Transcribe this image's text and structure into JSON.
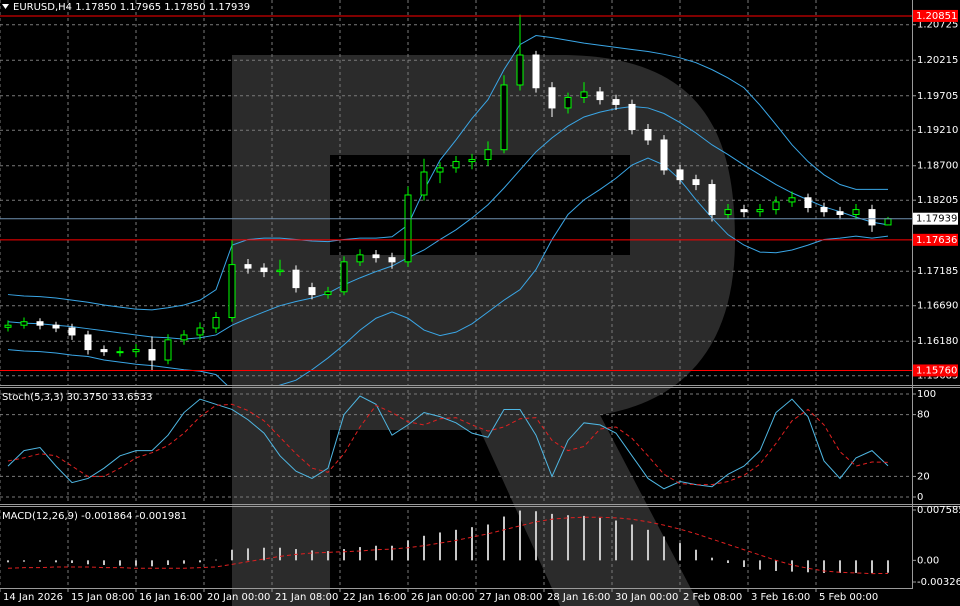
{
  "chart_data": [
    {
      "type": "candlestick",
      "title": "EURUSD,H4  1.17850 1.17965 1.17850 1.17939",
      "up_color": "#00ff00",
      "down_color": "#ffffff",
      "candles": {
        "open": [
          1.1638,
          1.1641,
          1.1646,
          1.1641,
          1.1637,
          1.1627,
          1.1606,
          1.1603,
          1.1603,
          1.1606,
          1.1591,
          1.162,
          1.1627,
          1.1637,
          1.1652,
          1.1728,
          1.1723,
          1.1718,
          1.172,
          1.1695,
          1.1685,
          1.1689,
          1.1732,
          1.1742,
          1.1738,
          1.1732,
          1.1828,
          1.1861,
          1.1867,
          1.1876,
          1.1879,
          1.1893,
          1.1986,
          1.2029,
          1.1982,
          1.1953,
          1.1968,
          1.1976,
          1.1965,
          1.1958,
          1.1922,
          1.1907,
          1.1864,
          1.185,
          1.1843,
          1.18,
          1.1807,
          1.1804,
          1.1807,
          1.1818,
          1.1824,
          1.181,
          1.1804,
          1.18,
          1.1807,
          1.1785
        ],
        "high": [
          1.1648,
          1.1652,
          1.1651,
          1.1646,
          1.1643,
          1.1633,
          1.1612,
          1.161,
          1.1614,
          1.1625,
          1.1628,
          1.1634,
          1.1645,
          1.166,
          1.1764,
          1.1736,
          1.173,
          1.1735,
          1.1727,
          1.1702,
          1.1696,
          1.174,
          1.175,
          1.1749,
          1.1745,
          1.184,
          1.188,
          1.1875,
          1.1884,
          1.1887,
          1.1905,
          1.2,
          1.2087,
          1.2035,
          1.199,
          1.1975,
          1.199,
          1.1983,
          1.1972,
          1.1965,
          1.193,
          1.1914,
          1.1871,
          1.1857,
          1.185,
          1.1815,
          1.1814,
          1.1815,
          1.1826,
          1.1833,
          1.183,
          1.1817,
          1.1811,
          1.1815,
          1.1814,
          1.17965
        ],
        "low": [
          1.1632,
          1.1636,
          1.1635,
          1.1631,
          1.162,
          1.1599,
          1.1597,
          1.1596,
          1.1595,
          1.1575,
          1.1585,
          1.1613,
          1.162,
          1.163,
          1.1646,
          1.1715,
          1.171,
          1.1712,
          1.1688,
          1.1678,
          1.1679,
          1.1684,
          1.1726,
          1.1731,
          1.1722,
          1.1725,
          1.182,
          1.1845,
          1.186,
          1.1865,
          1.187,
          1.1888,
          1.1978,
          1.1975,
          1.194,
          1.1945,
          1.196,
          1.1958,
          1.195,
          1.1915,
          1.19,
          1.1857,
          1.1843,
          1.1835,
          1.179,
          1.1793,
          1.1796,
          1.1797,
          1.18,
          1.1811,
          1.1803,
          1.1797,
          1.1793,
          1.1793,
          1.1775,
          1.1785
        ],
        "close": [
          1.1641,
          1.1646,
          1.1641,
          1.1637,
          1.1627,
          1.1606,
          1.1603,
          1.1603,
          1.1606,
          1.1591,
          1.162,
          1.1627,
          1.1637,
          1.1652,
          1.1728,
          1.1723,
          1.1718,
          1.172,
          1.1695,
          1.1685,
          1.1689,
          1.1732,
          1.1742,
          1.1738,
          1.1732,
          1.1828,
          1.1861,
          1.1867,
          1.1876,
          1.1879,
          1.1893,
          1.1986,
          1.2029,
          1.1982,
          1.1953,
          1.1968,
          1.1976,
          1.1965,
          1.1958,
          1.1922,
          1.1907,
          1.1864,
          1.185,
          1.1843,
          1.18,
          1.1807,
          1.1804,
          1.1807,
          1.1818,
          1.1824,
          1.181,
          1.1804,
          1.18,
          1.1807,
          1.1785,
          1.17939
        ]
      },
      "series": [
        {
          "color": "#3aa6e6",
          "values": [
            1.1646,
            1.1644,
            1.1643,
            1.1641,
            1.1639,
            1.1636,
            1.1633,
            1.163,
            1.1627,
            1.1624,
            1.1623,
            1.1621,
            1.1623,
            1.1627,
            1.1641,
            1.1651,
            1.166,
            1.1669,
            1.1675,
            1.168,
            1.1687,
            1.1699,
            1.1709,
            1.1718,
            1.1726,
            1.1738,
            1.1749,
            1.1764,
            1.1778,
            1.1795,
            1.1814,
            1.1838,
            1.1864,
            1.189,
            1.191,
            1.1927,
            1.194,
            1.1947,
            1.1952,
            1.1955,
            1.1953,
            1.1945,
            1.1932,
            1.1917,
            1.19,
            1.1886,
            1.1871,
            1.1857,
            1.1843,
            1.1831,
            1.1821,
            1.1811,
            1.1804,
            1.1796,
            1.1789,
            1.1785
          ]
        },
        {
          "color": "#3aa6e6",
          "values": [
            1.1685,
            1.1683,
            1.1682,
            1.168,
            1.1677,
            1.1674,
            1.167,
            1.1667,
            1.1664,
            1.1663,
            1.1666,
            1.167,
            1.1677,
            1.1692,
            1.1756,
            1.1764,
            1.1766,
            1.1766,
            1.1764,
            1.1762,
            1.1761,
            1.1764,
            1.1766,
            1.1766,
            1.1768,
            1.1785,
            1.1835,
            1.1878,
            1.1907,
            1.1938,
            1.1965,
            1.2008,
            1.2044,
            1.2057,
            1.2054,
            1.205,
            1.2046,
            1.2043,
            1.204,
            1.2037,
            1.2034,
            1.203,
            1.2025,
            1.2018,
            1.2008,
            1.1996,
            1.1982,
            1.1957,
            1.1929,
            1.19,
            1.1876,
            1.1857,
            1.1843,
            1.1836,
            1.1836,
            1.1836
          ]
        },
        {
          "color": "#3aa6e6",
          "values": [
            1.1606,
            1.1604,
            1.1603,
            1.1601,
            1.1598,
            1.1596,
            1.1591,
            1.1588,
            1.1585,
            1.1583,
            1.158,
            1.1577,
            1.1575,
            1.157,
            1.1548,
            1.1545,
            1.1548,
            1.1555,
            1.1562,
            1.1577,
            1.1594,
            1.1613,
            1.1634,
            1.1651,
            1.166,
            1.1651,
            1.1634,
            1.1626,
            1.1631,
            1.1643,
            1.166,
            1.1677,
            1.1692,
            1.1721,
            1.1764,
            1.18,
            1.1821,
            1.1836,
            1.1852,
            1.1871,
            1.1881,
            1.1871,
            1.185,
            1.1821,
            1.1795,
            1.1771,
            1.1756,
            1.1746,
            1.1745,
            1.1749,
            1.1756,
            1.1764,
            1.1766,
            1.1769,
            1.1766,
            1.1769
          ]
        }
      ],
      "ylim": [
        1.1558,
        1.2108
      ],
      "yticks": [
        1.20725,
        1.20215,
        1.19705,
        {
          "value": 1.1921,
          "label": "1.19210"
        },
        {
          "value": 1.187,
          "label": "1.18700"
        },
        1.18205,
        1.17185,
        {
          "value": 1.1669,
          "label": "1.16690"
        },
        {
          "value": 1.1618,
          "label": "1.16180"
        },
        1.15685
      ],
      "grid": true,
      "levels": [
        1.20851,
        1.17636,
        {
          "value": 1.1576,
          "label": "1.15760"
        }
      ],
      "level_color": "#ff0000",
      "current_price": 1.17939,
      "current_color": "#6f8fb0",
      "xticks": [
        {
          "value": -0.5,
          "label": "14 Jan 2026"
        },
        {
          "value": 3.75,
          "label": "15 Jan 08:00"
        },
        {
          "value": 8,
          "label": "16 Jan 16:00"
        },
        {
          "value": 12.25,
          "label": "20 Jan 00:00"
        },
        {
          "value": 16.5,
          "label": "21 Jan 08:00"
        },
        {
          "value": 20.75,
          "label": "22 Jan 16:00"
        },
        {
          "value": 25,
          "label": "26 Jan 00:00"
        },
        {
          "value": 29.25,
          "label": "27 Jan 08:00"
        },
        {
          "value": 33.5,
          "label": "28 Jan 16:00"
        },
        {
          "value": 37.75,
          "label": "30 Jan 00:00"
        },
        {
          "value": 42,
          "label": "2 Feb 08:00"
        },
        {
          "value": 46.25,
          "label": "3 Feb 16:00"
        },
        {
          "value": 50.5,
          "label": "5 Feb 00:00"
        }
      ]
    },
    {
      "type": "line",
      "title": "Stoch(5,3,3) 30.3750 33.6533",
      "series": [
        {
          "color": "#4fb7e3",
          "dashed": false,
          "values": [
            30,
            45,
            48,
            30,
            14,
            18,
            28,
            40,
            45,
            45,
            60,
            82,
            95,
            90,
            85,
            75,
            62,
            40,
            25,
            18,
            28,
            80,
            98,
            90,
            60,
            70,
            82,
            78,
            72,
            62,
            58,
            85,
            85,
            60,
            20,
            55,
            72,
            70,
            62,
            40,
            18,
            8,
            15,
            12,
            10,
            22,
            30,
            45,
            82,
            95,
            78,
            35,
            18,
            38,
            45,
            30.375
          ]
        },
        {
          "color": "#e02020",
          "dashed": true,
          "values": [
            35,
            38,
            42,
            40,
            30,
            20,
            20,
            28,
            38,
            43,
            50,
            62,
            78,
            89,
            90,
            84,
            74,
            58,
            42,
            28,
            24,
            42,
            68,
            89,
            82,
            73,
            70,
            76,
            77,
            70,
            64,
            68,
            76,
            77,
            55,
            45,
            49,
            66,
            68,
            57,
            40,
            22,
            13,
            12,
            12,
            15,
            21,
            32,
            52,
            74,
            85,
            70,
            44,
            30,
            34,
            33.6533
          ]
        }
      ],
      "ylim": [
        0,
        100
      ],
      "yticks": [
        100,
        80,
        20,
        0
      ],
      "grid": true
    },
    {
      "type": "macd",
      "title": "MACD(12,26,9) -0.001864 -0.001981",
      "histogram": {
        "color": "#c8c8c8",
        "values": [
          -0.0003,
          -0.0002,
          -0.0002,
          -0.0003,
          -0.0004,
          -0.0006,
          -0.0007,
          -0.0008,
          -0.0008,
          -0.0009,
          -0.0007,
          -0.0005,
          -0.0003,
          0.0001,
          0.0016,
          0.0018,
          0.0019,
          0.0019,
          0.0017,
          0.0015,
          0.0014,
          0.0017,
          0.002,
          0.0022,
          0.0022,
          0.003,
          0.0037,
          0.0042,
          0.0046,
          0.005,
          0.0054,
          0.0066,
          0.0075,
          0.0074,
          0.007,
          0.0068,
          0.0067,
          0.0064,
          0.006,
          0.0054,
          0.0046,
          0.0036,
          0.0026,
          0.0016,
          0.0004,
          -0.0004,
          -0.001,
          -0.0014,
          -0.0016,
          -0.0017,
          -0.0018,
          -0.0019,
          -0.0019,
          -0.0019,
          -0.0019,
          -0.001864
        ]
      },
      "series": [
        {
          "color": "#e02020",
          "dashed": true,
          "values": [
            -0.0012,
            -0.0011,
            -0.0011,
            -0.001,
            -0.001,
            -0.001,
            -0.0011,
            -0.0011,
            -0.0012,
            -0.0012,
            -0.0012,
            -0.0012,
            -0.0011,
            -0.001,
            -0.0006,
            -0.0002,
            0.0002,
            0.0006,
            0.0009,
            0.0011,
            0.0012,
            0.0013,
            0.0014,
            0.0016,
            0.0017,
            0.0019,
            0.0022,
            0.0026,
            0.003,
            0.0035,
            0.004,
            0.0046,
            0.0052,
            0.0058,
            0.0062,
            0.0064,
            0.0065,
            0.0065,
            0.0064,
            0.0062,
            0.0058,
            0.0053,
            0.0047,
            0.004,
            0.0032,
            0.0024,
            0.0016,
            0.0008,
            0,
            -0.0007,
            -0.0012,
            -0.0016,
            -0.0018,
            -0.0019,
            -0.002,
            -0.001981
          ]
        }
      ],
      "ylim": [
        -0.003264,
        0.007585
      ],
      "yticks": [
        0.007585,
        {
          "value": 0,
          "label": "0.00"
        },
        -0.003264
      ],
      "grid": false
    }
  ]
}
